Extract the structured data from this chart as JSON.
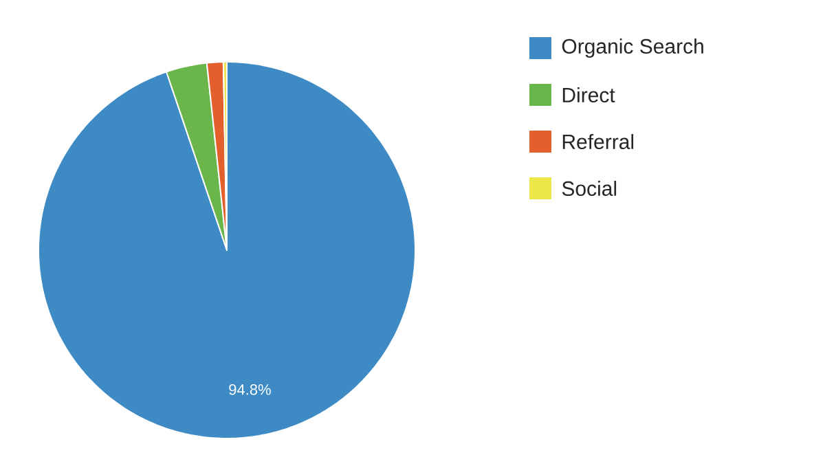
{
  "chart_data": {
    "type": "pie",
    "categories": [
      "Organic Search",
      "Direct",
      "Referral",
      "Social"
    ],
    "values": [
      94.8,
      3.5,
      1.4,
      0.3
    ],
    "colors": [
      "#3d8ac4",
      "#6ab64a",
      "#e3602d",
      "#ebe64a"
    ],
    "value_labels": [
      "94.8%",
      null,
      null,
      null
    ],
    "legend": "top right"
  }
}
